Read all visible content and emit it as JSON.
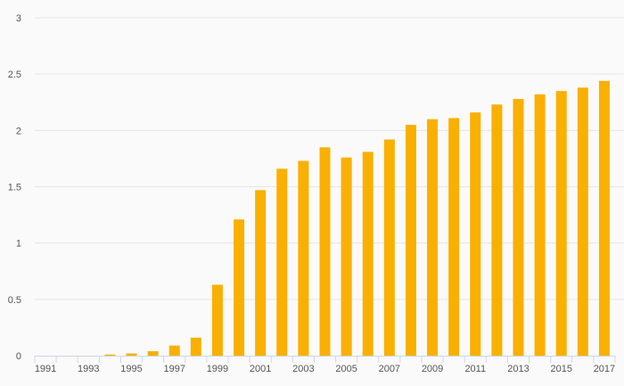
{
  "chart_data": {
    "type": "bar",
    "x": [
      1991,
      1992,
      1993,
      1994,
      1995,
      1996,
      1997,
      1998,
      1999,
      2000,
      2001,
      2002,
      2003,
      2004,
      2005,
      2006,
      2007,
      2008,
      2009,
      2010,
      2011,
      2012,
      2013,
      2014,
      2015,
      2016,
      2017
    ],
    "values": [
      0,
      0,
      0,
      0.01,
      0.02,
      0.04,
      0.09,
      0.16,
      0.63,
      1.21,
      1.47,
      1.66,
      1.73,
      1.85,
      1.76,
      1.81,
      1.92,
      2.05,
      2.1,
      2.11,
      2.16,
      2.23,
      2.28,
      2.32,
      2.35,
      2.38,
      2.44
    ],
    "x_tick_labels": [
      "1991",
      "1993",
      "1995",
      "1997",
      "1999",
      "2001",
      "2003",
      "2005",
      "2007",
      "2009",
      "2011",
      "2013",
      "2015",
      "2017"
    ],
    "y_tick_labels": [
      "0",
      "0.5",
      "1",
      "1.5",
      "2",
      "2.5",
      "3"
    ],
    "ylim": [
      0,
      3
    ],
    "grid": true,
    "legend": "none",
    "bar_color": "#f9b000",
    "grid_color": "#e6e6e6",
    "axis_color": "#ccd6eb",
    "title": "",
    "xlabel": "",
    "ylabel": ""
  }
}
